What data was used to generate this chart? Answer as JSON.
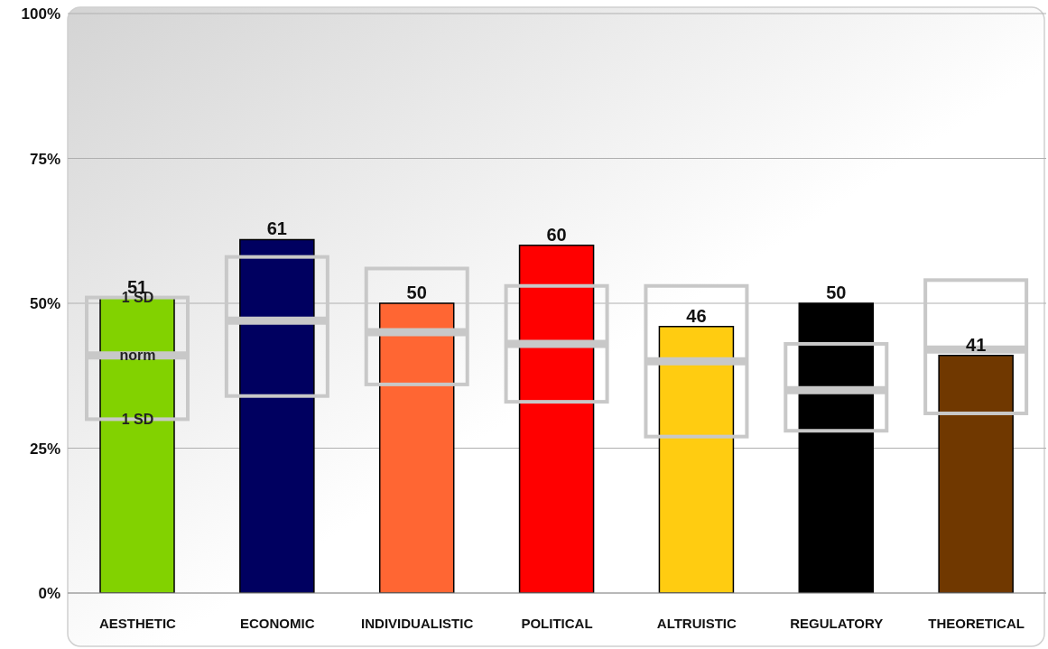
{
  "chart_data": {
    "type": "bar",
    "categories": [
      "AESTHETIC",
      "ECONOMIC",
      "INDIVIDUALISTIC",
      "POLITICAL",
      "ALTRUISTIC",
      "REGULATORY",
      "THEORETICAL"
    ],
    "series": [
      {
        "values": [
          51,
          61,
          50,
          60,
          46,
          50,
          41
        ],
        "colors": [
          "#82d200",
          "#000060",
          "#ff6633",
          "#ff0000",
          "#ffcc11",
          "#000000",
          "#703800"
        ]
      },
      {
        "type": "box",
        "color": "#c8c8c8",
        "boxes": [
          {
            "low": 30,
            "q1": 30,
            "median": 41,
            "q3": 51,
            "high": 51
          },
          {
            "low": 34,
            "q1": 34,
            "median": 47,
            "q3": 58,
            "high": 58
          },
          {
            "low": 36,
            "q1": 36,
            "median": 45,
            "q3": 56,
            "high": 56
          },
          {
            "low": 33,
            "q1": 33,
            "median": 43,
            "q3": 53,
            "high": 53
          },
          {
            "low": 27,
            "q1": 27,
            "median": 40,
            "q3": 53,
            "high": 53
          },
          {
            "low": 28,
            "q1": 28,
            "median": 35,
            "q3": 43,
            "high": 43
          },
          {
            "low": 31,
            "q1": 31,
            "median": 42,
            "q3": 54,
            "high": 54
          }
        ]
      }
    ],
    "ylim": [
      0,
      100
    ],
    "yticks": [
      {
        "value": 0,
        "label": "0%"
      },
      {
        "value": 25,
        "label": "25%"
      },
      {
        "value": 50,
        "label": "50%"
      },
      {
        "value": 75,
        "label": "75%"
      },
      {
        "value": 100,
        "label": "100%"
      }
    ],
    "grid": "y",
    "data_labels": true,
    "annotations": [
      {
        "text": "1 SD",
        "x": "AESTHETIC",
        "y": 51
      },
      {
        "text": "norm",
        "x": "AESTHETIC",
        "y": 41
      },
      {
        "text": "1 SD",
        "x": "AESTHETIC",
        "y": 30
      }
    ]
  }
}
